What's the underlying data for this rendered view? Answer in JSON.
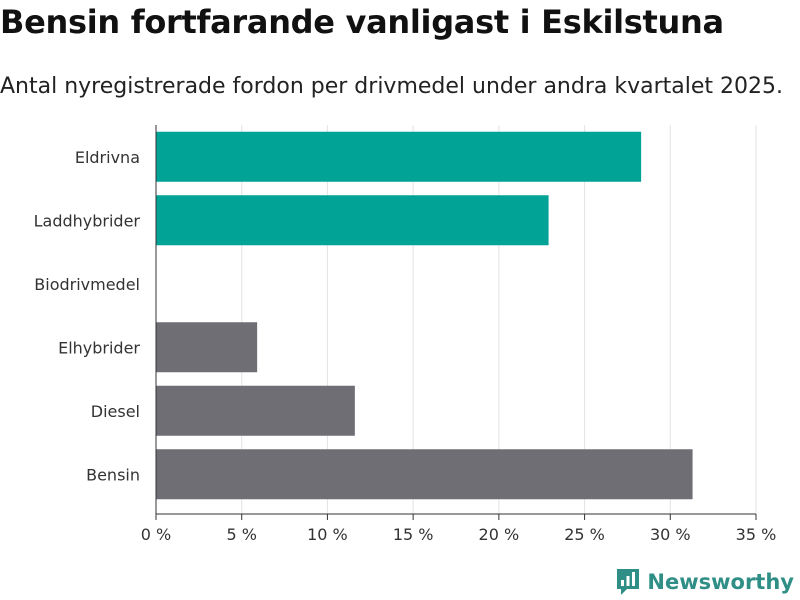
{
  "header": {
    "title": "Bensin fortfarande vanligast i Eskilstuna",
    "subtitle": "Antal nyregistrerade fordon per drivmedel under andra kvartalet 2025."
  },
  "logo": {
    "text": "Newsworthy",
    "icon": "bar-chart-speech-bubble-icon"
  },
  "colors": {
    "highlight": "#00a396",
    "default": "#6f6e74",
    "grid": "#e3e3e3",
    "axis": "#333333"
  },
  "chart_data": {
    "type": "bar",
    "orientation": "horizontal",
    "title": "Bensin fortfarande vanligast i Eskilstuna",
    "subtitle": "Antal nyregistrerade fordon per drivmedel under andra kvartalet 2025.",
    "xlabel": "",
    "ylabel": "",
    "unit": "%",
    "categories": [
      "Eldrivna",
      "Laddhybrider",
      "Biodrivmedel",
      "Elhybrider",
      "Diesel",
      "Bensin"
    ],
    "values": [
      28.3,
      22.9,
      0,
      5.9,
      11.6,
      31.3
    ],
    "highlighted": [
      true,
      true,
      false,
      false,
      false,
      false
    ],
    "xlim": [
      0,
      35
    ],
    "xticks": [
      0,
      5,
      10,
      15,
      20,
      25,
      30,
      35
    ],
    "xtick_labels": [
      "0 %",
      "5 %",
      "10 %",
      "15 %",
      "20 %",
      "25 %",
      "30 %",
      "35 %"
    ],
    "grid": "vertical",
    "legend": "none"
  }
}
